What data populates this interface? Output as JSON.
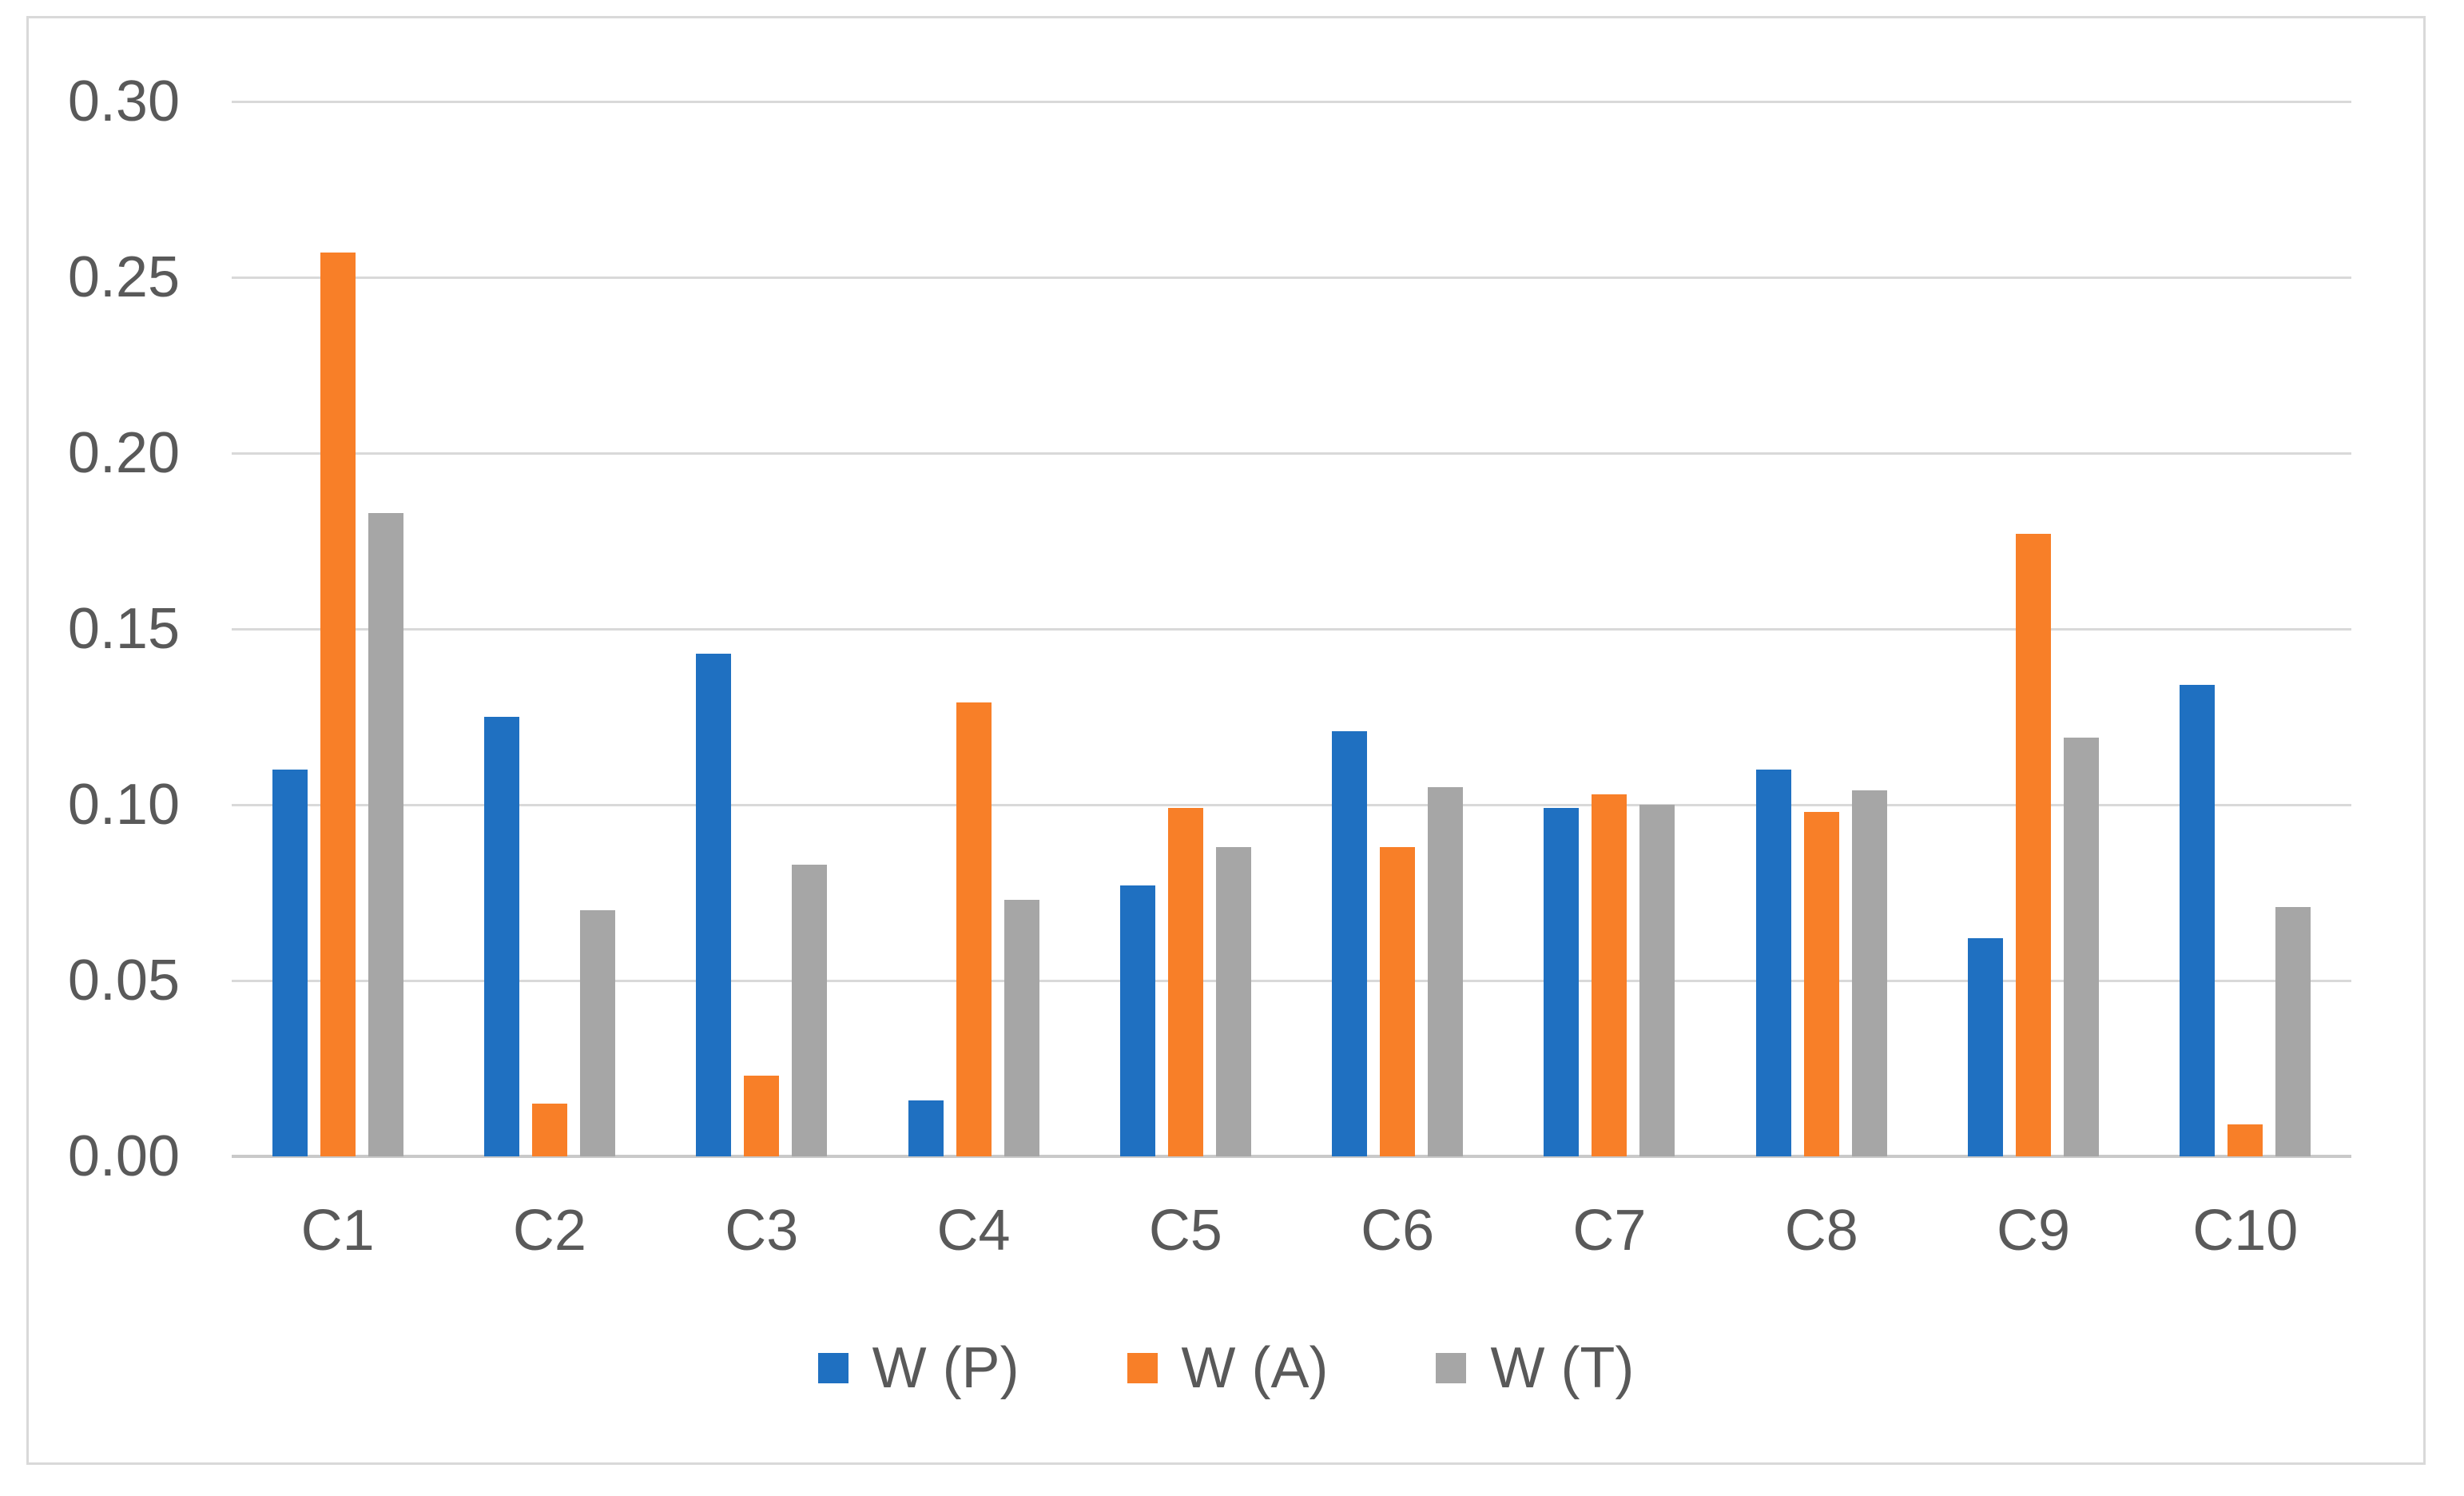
{
  "chart_data": {
    "type": "bar",
    "title": "",
    "categories": [
      "C1",
      "C2",
      "C3",
      "C4",
      "C5",
      "C6",
      "C7",
      "C8",
      "C9",
      "C10"
    ],
    "series": [
      {
        "name": "W (P)",
        "color": "#1F70C1",
        "values": [
          0.11,
          0.125,
          0.143,
          0.016,
          0.077,
          0.121,
          0.099,
          0.11,
          0.062,
          0.134
        ]
      },
      {
        "name": "W (A)",
        "color": "#F87F28",
        "values": [
          0.257,
          0.015,
          0.023,
          0.129,
          0.099,
          0.088,
          0.103,
          0.098,
          0.177,
          0.009
        ]
      },
      {
        "name": "W (T)",
        "color": "#A6A6A6",
        "values": [
          0.183,
          0.07,
          0.083,
          0.073,
          0.088,
          0.105,
          0.1,
          0.104,
          0.119,
          0.071
        ]
      }
    ],
    "ylim": [
      0,
      0.3
    ],
    "ytick_step": 0.05,
    "ytick_labels_top_to_bottom": [
      "0.30",
      "0.25",
      "0.20",
      "0.15",
      "0.10",
      "0.05",
      "0.00"
    ],
    "xlabel": "",
    "ylabel": "",
    "grid": true,
    "legend_position": "bottom"
  },
  "style": {
    "gridline_color": "#D9D9D9",
    "baseline_color": "#C9C9C9",
    "frame_border_color": "#D9D9D9",
    "axis_text_color": "#595959",
    "background_color": "#FFFFFF"
  }
}
